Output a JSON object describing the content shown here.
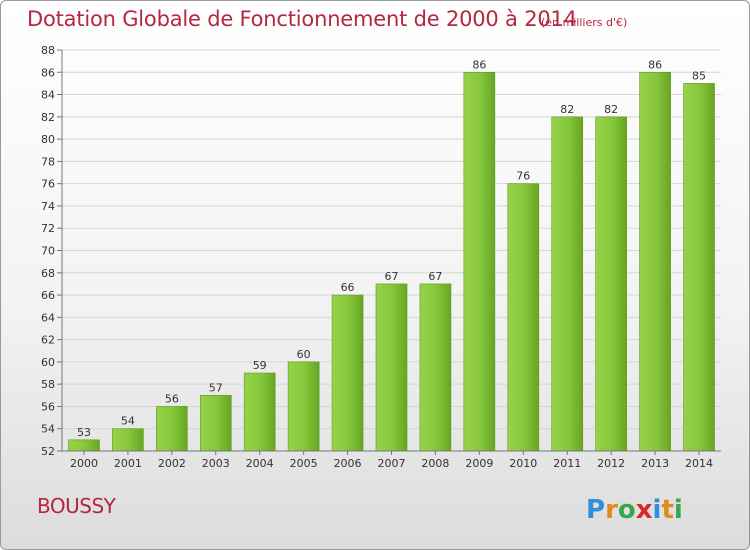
{
  "chart_data": {
    "type": "bar",
    "title": "Dotation Globale de Fonctionnement de 2000 à 2014",
    "subtitle": "(en milliers d'€)",
    "xlabel": "",
    "ylabel": "",
    "categories": [
      "2000",
      "2001",
      "2002",
      "2003",
      "2004",
      "2005",
      "2006",
      "2007",
      "2008",
      "2009",
      "2010",
      "2011",
      "2012",
      "2013",
      "2014"
    ],
    "values": [
      53,
      54,
      56,
      57,
      59,
      60,
      66,
      67,
      67,
      86,
      76,
      82,
      82,
      86,
      85
    ],
    "ylim": [
      52,
      88
    ],
    "yticks": [
      52,
      54,
      56,
      58,
      60,
      62,
      64,
      66,
      68,
      70,
      72,
      74,
      76,
      78,
      80,
      82,
      84,
      86,
      88
    ],
    "grid": "horizontal",
    "bar_color": "#7cbf2f"
  },
  "footer": {
    "commune": "BOUSSY",
    "logo_text": "Proxiti"
  }
}
